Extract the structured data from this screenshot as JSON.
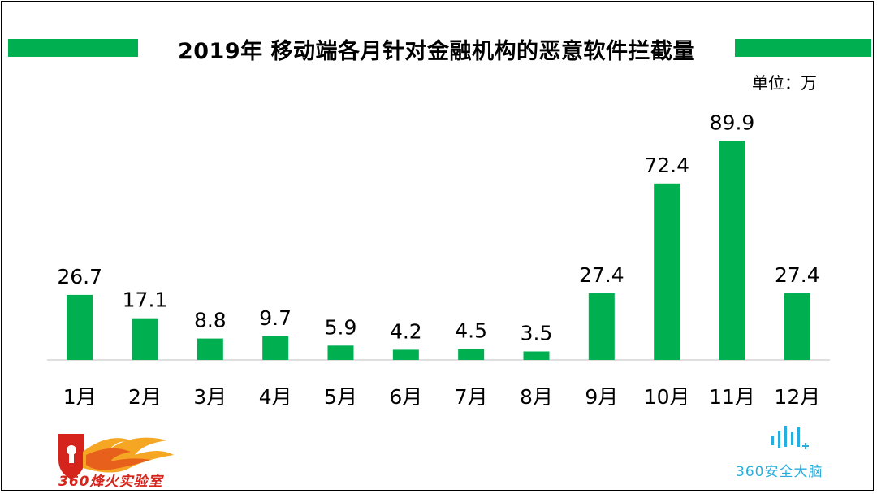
{
  "title": "2019年 移动端各月针对金融机构的恶意软件拦截量",
  "unit_label": "单位：万",
  "colors": {
    "bar": "#00b050",
    "accent_bar": "#00b050",
    "axis": "#bfbfbf"
  },
  "chart_data": {
    "type": "bar",
    "title": "2019年 移动端各月针对金融机构的恶意软件拦截量",
    "ylabel": "单位：万",
    "categories": [
      "1月",
      "2月",
      "3月",
      "4月",
      "5月",
      "6月",
      "7月",
      "8月",
      "9月",
      "10月",
      "11月",
      "12月"
    ],
    "values": [
      26.7,
      17.1,
      8.8,
      9.7,
      5.9,
      4.2,
      4.5,
      3.5,
      27.4,
      72.4,
      89.9,
      27.4
    ],
    "value_labels": [
      "26.7",
      "17.1",
      "8.8",
      "9.7",
      "5.9",
      "4.2",
      "4.5",
      "3.5",
      "27.4",
      "72.4",
      "89.9",
      "27.4"
    ],
    "ylim": [
      0,
      100
    ],
    "grid": false,
    "legend": "none"
  },
  "logos": {
    "left_text": "360烽火实验室",
    "right_text": "360安全大脑"
  }
}
